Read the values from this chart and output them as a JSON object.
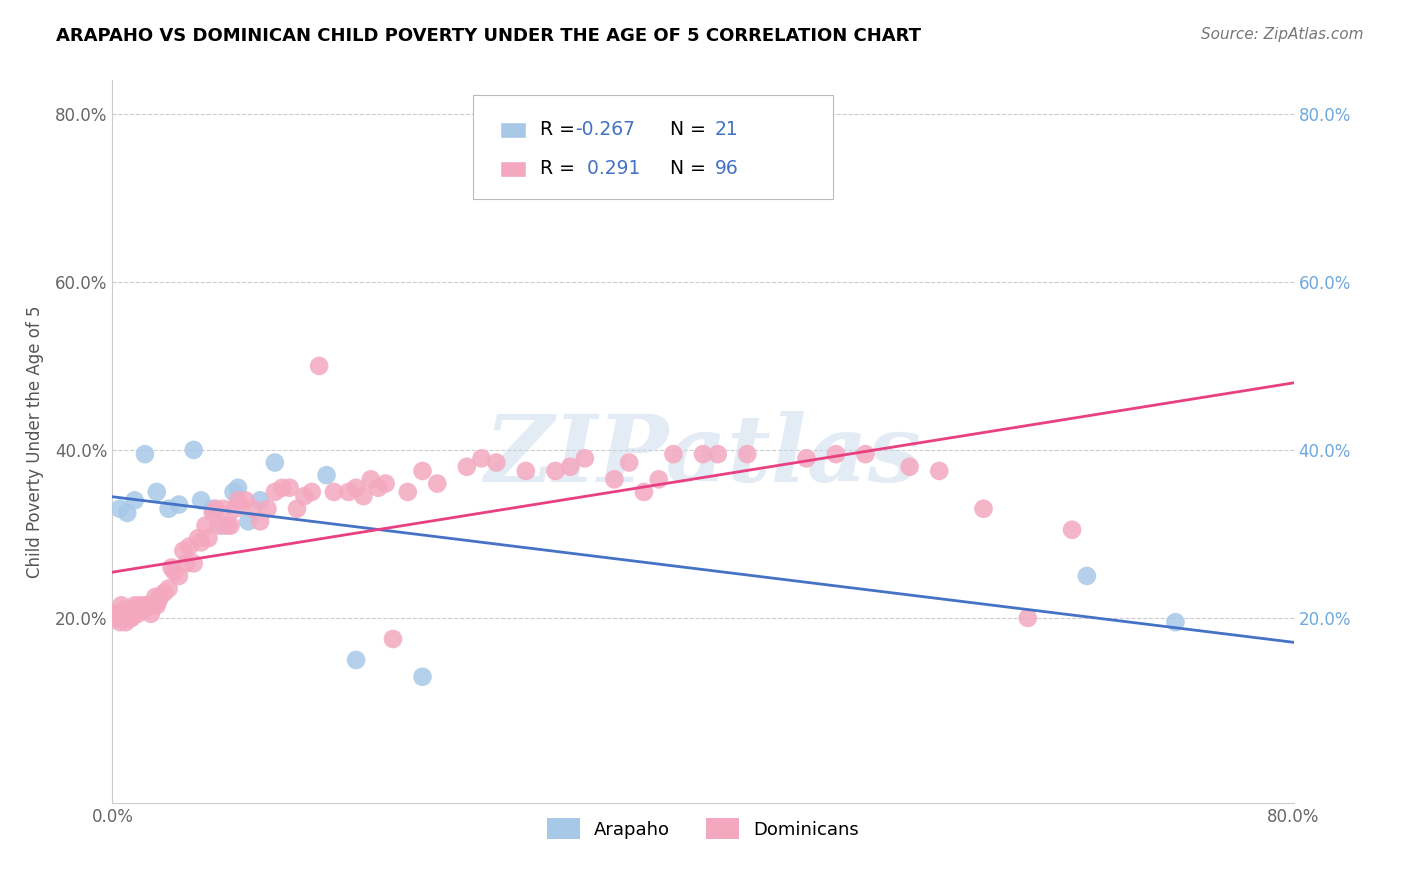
{
  "title": "ARAPAHO VS DOMINICAN CHILD POVERTY UNDER THE AGE OF 5 CORRELATION CHART",
  "source": "Source: ZipAtlas.com",
  "ylabel": "Child Poverty Under the Age of 5",
  "xlim": [
    0.0,
    0.8
  ],
  "ylim": [
    -0.02,
    0.84
  ],
  "ytick_positions": [
    0.2,
    0.4,
    0.6,
    0.8
  ],
  "ytick_labels": [
    "20.0%",
    "40.0%",
    "60.0%",
    "80.0%"
  ],
  "arapaho_color": "#a8c8e8",
  "dominican_color": "#f4a8c0",
  "arapaho_line_color": "#4472c4",
  "dominican_line_color": "#e84080",
  "watermark": "ZIPatlas",
  "arapaho_x": [
    0.005,
    0.01,
    0.015,
    0.022,
    0.03,
    0.038,
    0.045,
    0.055,
    0.06,
    0.068,
    0.075,
    0.082,
    0.085,
    0.092,
    0.1,
    0.11,
    0.145,
    0.165,
    0.21,
    0.66,
    0.72
  ],
  "arapaho_y": [
    0.33,
    0.325,
    0.34,
    0.395,
    0.35,
    0.33,
    0.335,
    0.4,
    0.34,
    0.33,
    0.31,
    0.35,
    0.355,
    0.315,
    0.34,
    0.385,
    0.37,
    0.15,
    0.13,
    0.25,
    0.195
  ],
  "dominican_x": [
    0.002,
    0.003,
    0.005,
    0.006,
    0.007,
    0.008,
    0.009,
    0.01,
    0.011,
    0.012,
    0.013,
    0.014,
    0.015,
    0.016,
    0.017,
    0.018,
    0.019,
    0.02,
    0.021,
    0.022,
    0.023,
    0.024,
    0.025,
    0.026,
    0.027,
    0.028,
    0.029,
    0.03,
    0.031,
    0.032,
    0.035,
    0.038,
    0.04,
    0.042,
    0.045,
    0.048,
    0.05,
    0.052,
    0.055,
    0.058,
    0.06,
    0.063,
    0.065,
    0.068,
    0.07,
    0.072,
    0.075,
    0.078,
    0.08,
    0.083,
    0.085,
    0.09,
    0.095,
    0.1,
    0.105,
    0.11,
    0.115,
    0.12,
    0.125,
    0.13,
    0.135,
    0.14,
    0.15,
    0.16,
    0.165,
    0.17,
    0.175,
    0.18,
    0.185,
    0.19,
    0.2,
    0.21,
    0.22,
    0.24,
    0.25,
    0.26,
    0.28,
    0.3,
    0.31,
    0.32,
    0.34,
    0.35,
    0.36,
    0.37,
    0.38,
    0.4,
    0.41,
    0.43,
    0.47,
    0.49,
    0.51,
    0.54,
    0.56,
    0.59,
    0.62,
    0.65
  ],
  "dominican_y": [
    0.2,
    0.205,
    0.195,
    0.215,
    0.2,
    0.21,
    0.195,
    0.2,
    0.2,
    0.2,
    0.2,
    0.21,
    0.215,
    0.21,
    0.205,
    0.215,
    0.21,
    0.21,
    0.21,
    0.215,
    0.215,
    0.215,
    0.215,
    0.205,
    0.215,
    0.215,
    0.225,
    0.215,
    0.22,
    0.225,
    0.23,
    0.235,
    0.26,
    0.255,
    0.25,
    0.28,
    0.265,
    0.285,
    0.265,
    0.295,
    0.29,
    0.31,
    0.295,
    0.325,
    0.33,
    0.31,
    0.33,
    0.31,
    0.31,
    0.33,
    0.34,
    0.34,
    0.33,
    0.315,
    0.33,
    0.35,
    0.355,
    0.355,
    0.33,
    0.345,
    0.35,
    0.5,
    0.35,
    0.35,
    0.355,
    0.345,
    0.365,
    0.355,
    0.36,
    0.175,
    0.35,
    0.375,
    0.36,
    0.38,
    0.39,
    0.385,
    0.375,
    0.375,
    0.38,
    0.39,
    0.365,
    0.385,
    0.35,
    0.365,
    0.395,
    0.395,
    0.395,
    0.395,
    0.39,
    0.395,
    0.395,
    0.38,
    0.375,
    0.33,
    0.2,
    0.305
  ]
}
